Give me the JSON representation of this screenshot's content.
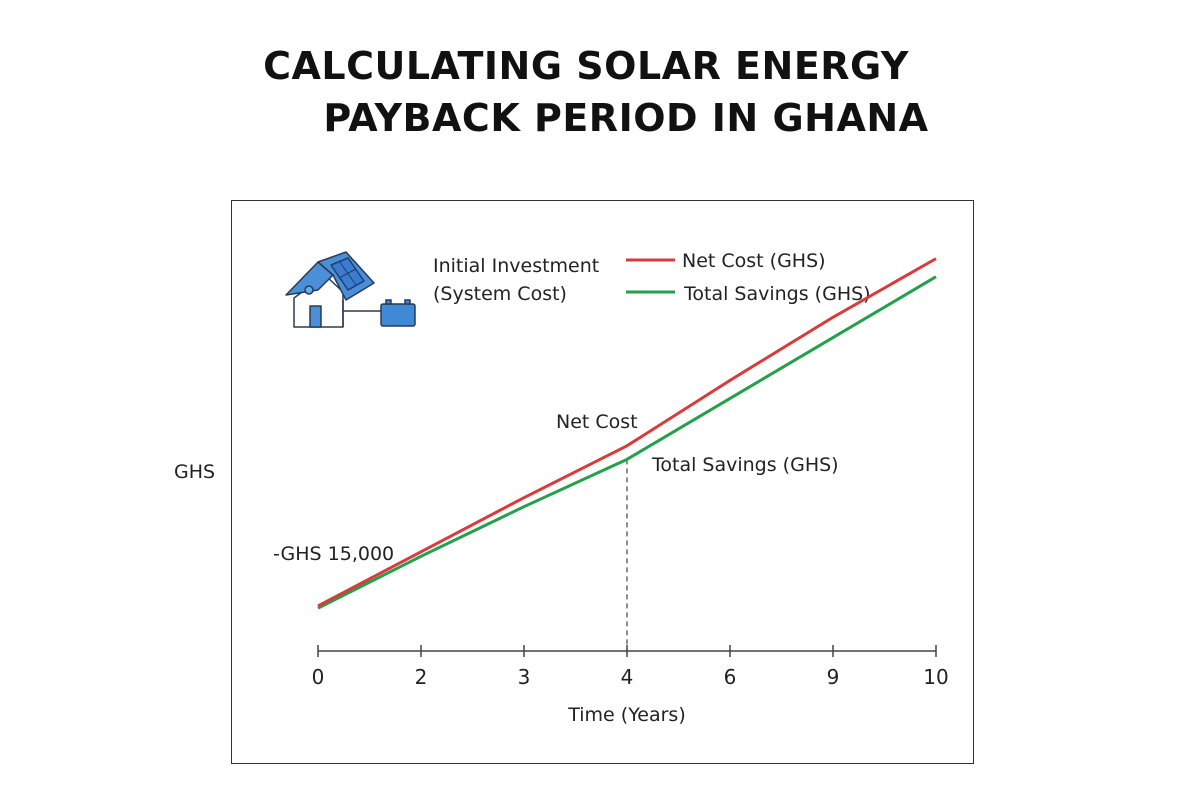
{
  "title_line1": "CALCULATING SOLAR ENERGY",
  "title_line2": "PAYBACK PERIOD IN GHANA",
  "chart_data": {
    "type": "line",
    "title": "CALCULATING SOLAR ENERGY PAYBACK PERIOD IN GHANA",
    "xlabel": "Time (Years)",
    "ylabel": "GHS",
    "categories": [
      "0",
      "2",
      "3",
      "4",
      "6",
      "9",
      "10"
    ],
    "y_scale_note_units": "relative (no y tick labels printed)",
    "ylim": [
      0,
      100
    ],
    "grid": false,
    "legend_placement": "top",
    "series": [
      {
        "name": "Net Cost (GHS)",
        "color": "#d93a3a",
        "values": [
          10,
          22,
          34,
          45.5,
          60,
          74,
          87
        ]
      },
      {
        "name": "Total Savings (GHS)",
        "color": "#22a04a",
        "values": [
          9.5,
          21,
          32,
          42.5,
          56,
          69.5,
          83
        ]
      }
    ],
    "payback_marker_x": "4",
    "annotations": {
      "initial_investment_line1": "Initial Investment",
      "initial_investment_line2": "(System Cost)",
      "start_value": "-GHS 15,000",
      "net_cost": "Net Cost",
      "total_savings": "Total Savings (GHS)"
    },
    "icons": [
      "house-with-solar-panel-icon",
      "battery-icon"
    ]
  }
}
